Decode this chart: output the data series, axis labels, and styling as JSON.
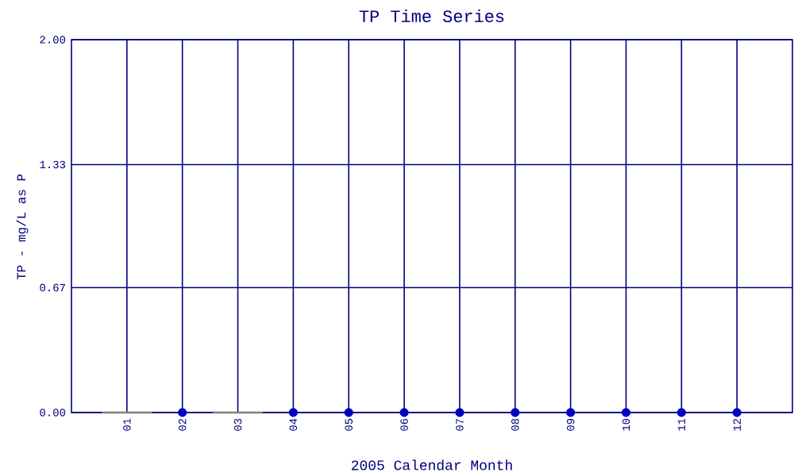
{
  "chart_data": {
    "type": "scatter",
    "title": "TP Time Series",
    "xlabel": "2005 Calendar Month",
    "ylabel": "TP - mg/L as P",
    "categories": [
      "01",
      "02",
      "03",
      "04",
      "05",
      "06",
      "07",
      "08",
      "09",
      "10",
      "11",
      "12"
    ],
    "series": [
      {
        "type": "bar",
        "color": "#808080",
        "values": [
          0,
          null,
          0,
          null,
          null,
          null,
          null,
          null,
          null,
          null,
          null,
          null
        ]
      },
      {
        "color": "#0000c0",
        "values": [
          null,
          0,
          null,
          0,
          0,
          0,
          0,
          0,
          0,
          0,
          0,
          0
        ]
      }
    ],
    "ylim": [
      0,
      2
    ],
    "yticks": [
      {
        "value": 0,
        "label": "0.00"
      },
      {
        "value": 0.67,
        "label": "0.67"
      },
      {
        "value": 1.33,
        "label": "1.33"
      },
      {
        "value": 2,
        "label": "2.00"
      }
    ],
    "grid": true,
    "marker": "circle"
  }
}
